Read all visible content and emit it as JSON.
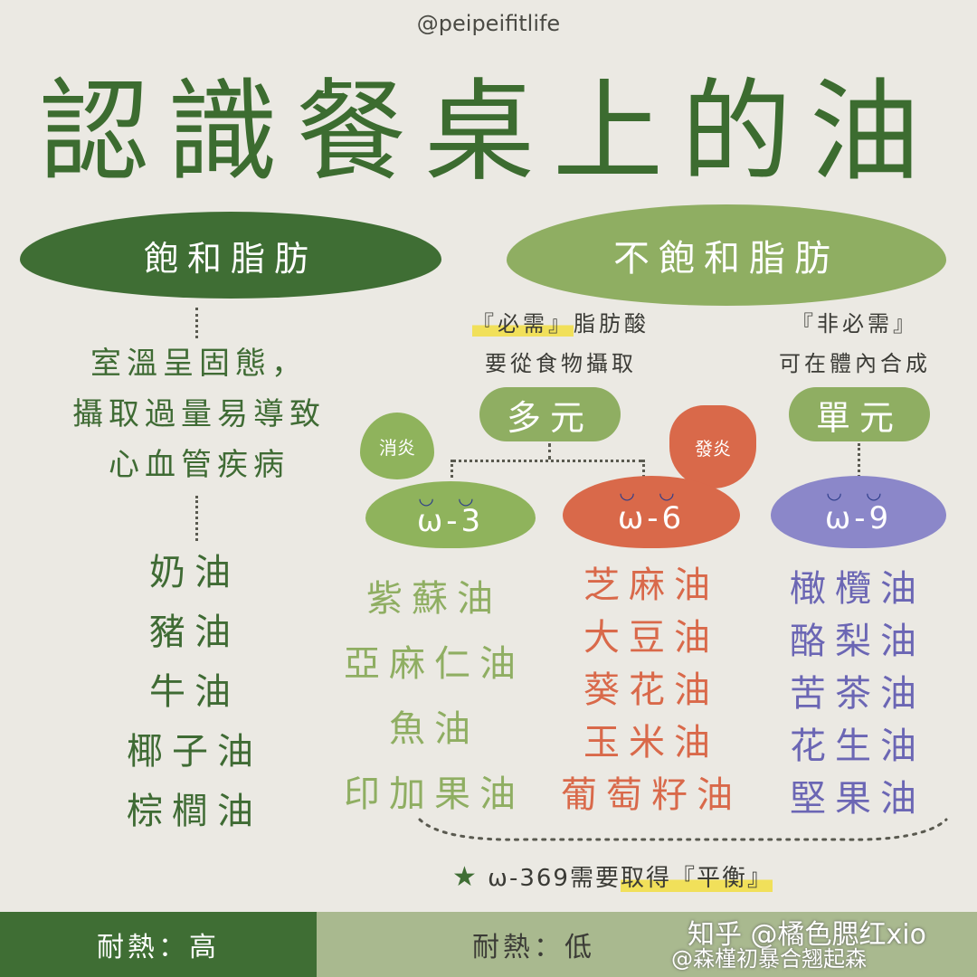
{
  "handle": "@peipeifitlife",
  "title": "認識餐桌上的油",
  "saturated": {
    "label": "飽和脂肪",
    "description": [
      "室溫呈固態，",
      "攝取過量易導致",
      "心血管疾病"
    ],
    "oils": [
      "奶油",
      "豬油",
      "牛油",
      "椰子油",
      "棕櫚油"
    ]
  },
  "unsaturated": {
    "label": "不飽和脂肪",
    "essential_line1_hl": "『必需』",
    "essential_line1_rest": "脂肪酸",
    "essential_line2": "要從食物攝取",
    "nonessential_line1": "『非必需』",
    "nonessential_line2": "可在體內合成",
    "poly_label": "多元",
    "mono_label": "單元",
    "anti_inflammatory": "消炎",
    "inflammatory": "發炎",
    "omega3": {
      "label": "ω-3",
      "oils": [
        "紫蘇油",
        "亞麻仁油",
        "魚油",
        "印加果油"
      ]
    },
    "omega6": {
      "label": "ω-6",
      "oils": [
        "芝麻油",
        "大豆油",
        "葵花油",
        "玉米油",
        "葡萄籽油"
      ]
    },
    "omega9": {
      "label": "ω-9",
      "oils": [
        "橄欖油",
        "酪梨油",
        "苦茶油",
        "花生油",
        "堅果油"
      ]
    }
  },
  "balance_note_prefix": "ω-369需要",
  "balance_note_hl": "取得『平衡』",
  "footer": {
    "heat_high": "耐熱：高",
    "heat_low": "耐熱：低"
  },
  "watermark": {
    "line1": "知乎 @橘色腮红xio",
    "line2": "@森槿初暴合翘起森"
  },
  "colors": {
    "saturated": "#3f6e34",
    "unsaturated": "#8fae62",
    "omega3": "#8fb35c",
    "omega6": "#d9694a",
    "omega9": "#8b87c9",
    "background": "#ebe9e3"
  }
}
